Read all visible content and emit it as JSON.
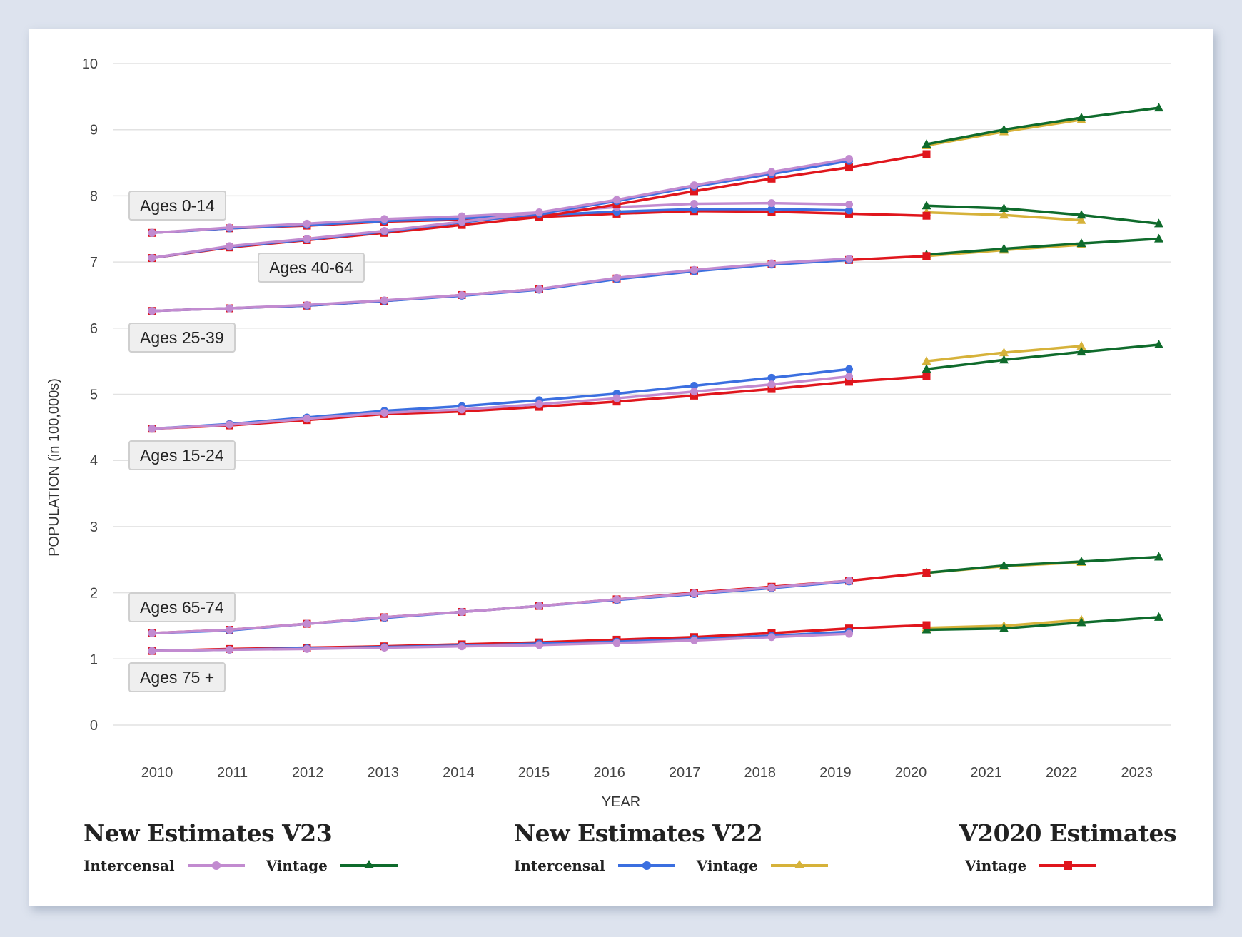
{
  "chart_data": {
    "type": "line",
    "title": "",
    "xlabel": "YEAR",
    "ylabel": "POPULATION (in 100,000s)",
    "ylim": [
      0,
      10
    ],
    "yticks": [
      "0",
      "1",
      "2",
      "3",
      "4",
      "5",
      "6",
      "7",
      "8",
      "9",
      "10"
    ],
    "xticks": [
      "2010",
      "2011",
      "2012",
      "2013",
      "2014",
      "2015",
      "2016",
      "2017",
      "2018",
      "2019",
      "2020",
      "2021",
      "2022",
      "2023"
    ],
    "grid": true,
    "series_styles": {
      "v23_intercensal": {
        "color": "#c28bd0",
        "marker": "circle",
        "legend": "New Estimates V23 — Intercensal"
      },
      "v23_vintage": {
        "color": "#0f6b2c",
        "marker": "triangle",
        "legend": "New Estimates V23 — Vintage"
      },
      "v22_intercensal": {
        "color": "#3b6fe0",
        "marker": "circle",
        "legend": "New Estimates V22 — Intercensal"
      },
      "v22_vintage": {
        "color": "#d6b23a",
        "marker": "triangle",
        "legend": "New Estimates V22 — Vintage"
      },
      "v2020_vintage": {
        "color": "#e0161d",
        "marker": "square",
        "legend": "V2020 Estimates — Vintage"
      }
    },
    "groups": [
      {
        "label": "Ages 0-14",
        "series": {
          "v2020_vintage": {
            "x": [
              2010,
              2011,
              2012,
              2013,
              2014,
              2015,
              2016,
              2017,
              2018,
              2019,
              2020
            ],
            "y": [
              7.44,
              7.51,
              7.55,
              7.61,
              7.64,
              7.68,
              7.73,
              7.77,
              7.76,
              7.73,
              7.7
            ]
          },
          "v22_intercensal": {
            "x": [
              2010,
              2011,
              2012,
              2013,
              2014,
              2015,
              2016,
              2017,
              2018,
              2019
            ],
            "y": [
              7.44,
              7.51,
              7.56,
              7.62,
              7.66,
              7.71,
              7.76,
              7.8,
              7.8,
              7.78
            ]
          },
          "v23_intercensal": {
            "x": [
              2010,
              2011,
              2012,
              2013,
              2014,
              2015,
              2016,
              2017,
              2018,
              2019
            ],
            "y": [
              7.44,
              7.52,
              7.58,
              7.65,
              7.69,
              7.75,
              7.83,
              7.88,
              7.89,
              7.87
            ]
          },
          "v22_vintage": {
            "x": [
              2020,
              2021,
              2022
            ],
            "y": [
              7.75,
              7.71,
              7.63
            ]
          },
          "v23_vintage": {
            "x": [
              2020,
              2021,
              2022,
              2023
            ],
            "y": [
              7.85,
              7.81,
              7.71,
              7.58
            ]
          }
        }
      },
      {
        "label": "Ages 40-64",
        "series": {
          "v2020_vintage": {
            "x": [
              2010,
              2011,
              2012,
              2013,
              2014,
              2015,
              2016,
              2017,
              2018,
              2019,
              2020
            ],
            "y": [
              7.06,
              7.22,
              7.33,
              7.44,
              7.56,
              7.68,
              7.87,
              8.07,
              8.26,
              8.43,
              8.63
            ]
          },
          "v22_intercensal": {
            "x": [
              2010,
              2011,
              2012,
              2013,
              2014,
              2015,
              2016,
              2017,
              2018,
              2019
            ],
            "y": [
              7.06,
              7.23,
              7.34,
              7.46,
              7.6,
              7.73,
              7.92,
              8.14,
              8.33,
              8.53
            ]
          },
          "v23_intercensal": {
            "x": [
              2010,
              2011,
              2012,
              2013,
              2014,
              2015,
              2016,
              2017,
              2018,
              2019
            ],
            "y": [
              7.06,
              7.24,
              7.35,
              7.47,
              7.61,
              7.75,
              7.94,
              8.16,
              8.36,
              8.56
            ]
          },
          "v22_vintage": {
            "x": [
              2020,
              2021,
              2022
            ],
            "y": [
              8.76,
              8.97,
              9.15
            ]
          },
          "v23_vintage": {
            "x": [
              2020,
              2021,
              2022,
              2023
            ],
            "y": [
              8.78,
              9.0,
              9.18,
              9.33
            ]
          }
        }
      },
      {
        "label": "Ages 25-39",
        "series": {
          "v2020_vintage": {
            "x": [
              2010,
              2011,
              2012,
              2013,
              2014,
              2015,
              2016,
              2017,
              2018,
              2019,
              2020
            ],
            "y": [
              6.26,
              6.3,
              6.34,
              6.41,
              6.5,
              6.59,
              6.75,
              6.87,
              6.97,
              7.03,
              7.09
            ]
          },
          "v22_intercensal": {
            "x": [
              2010,
              2011,
              2012,
              2013,
              2014,
              2015,
              2016,
              2017,
              2018,
              2019
            ],
            "y": [
              6.26,
              6.3,
              6.34,
              6.41,
              6.49,
              6.58,
              6.74,
              6.86,
              6.96,
              7.03
            ]
          },
          "v23_intercensal": {
            "x": [
              2010,
              2011,
              2012,
              2013,
              2014,
              2015,
              2016,
              2017,
              2018,
              2019
            ],
            "y": [
              6.26,
              6.3,
              6.35,
              6.42,
              6.5,
              6.59,
              6.76,
              6.88,
              6.98,
              7.05
            ]
          },
          "v22_vintage": {
            "x": [
              2020,
              2021,
              2022
            ],
            "y": [
              7.09,
              7.18,
              7.26
            ]
          },
          "v23_vintage": {
            "x": [
              2020,
              2021,
              2022,
              2023
            ],
            "y": [
              7.11,
              7.2,
              7.28,
              7.35
            ]
          }
        }
      },
      {
        "label": "Ages 15-24",
        "series": {
          "v2020_vintage": {
            "x": [
              2010,
              2011,
              2012,
              2013,
              2014,
              2015,
              2016,
              2017,
              2018,
              2019,
              2020
            ],
            "y": [
              4.48,
              4.53,
              4.61,
              4.7,
              4.74,
              4.81,
              4.89,
              4.98,
              5.08,
              5.19,
              5.27
            ]
          },
          "v22_intercensal": {
            "x": [
              2010,
              2011,
              2012,
              2013,
              2014,
              2015,
              2016,
              2017,
              2018,
              2019
            ],
            "y": [
              4.48,
              4.55,
              4.65,
              4.75,
              4.82,
              4.91,
              5.01,
              5.13,
              5.25,
              5.38
            ]
          },
          "v23_intercensal": {
            "x": [
              2010,
              2011,
              2012,
              2013,
              2014,
              2015,
              2016,
              2017,
              2018,
              2019
            ],
            "y": [
              4.48,
              4.54,
              4.63,
              4.72,
              4.77,
              4.85,
              4.94,
              5.04,
              5.15,
              5.27
            ]
          },
          "v22_vintage": {
            "x": [
              2020,
              2021,
              2022
            ],
            "y": [
              5.5,
              5.63,
              5.73
            ]
          },
          "v23_vintage": {
            "x": [
              2020,
              2021,
              2022,
              2023
            ],
            "y": [
              5.38,
              5.52,
              5.64,
              5.75
            ]
          }
        }
      },
      {
        "label": "Ages 65-74",
        "series": {
          "v2020_vintage": {
            "x": [
              2010,
              2011,
              2012,
              2013,
              2014,
              2015,
              2016,
              2017,
              2018,
              2019,
              2020
            ],
            "y": [
              1.39,
              1.44,
              1.53,
              1.63,
              1.71,
              1.8,
              1.9,
              2.0,
              2.09,
              2.18,
              2.3
            ]
          },
          "v22_intercensal": {
            "x": [
              2010,
              2011,
              2012,
              2013,
              2014,
              2015,
              2016,
              2017,
              2018,
              2019
            ],
            "y": [
              1.39,
              1.43,
              1.53,
              1.62,
              1.71,
              1.8,
              1.89,
              1.98,
              2.07,
              2.17
            ]
          },
          "v23_intercensal": {
            "x": [
              2010,
              2011,
              2012,
              2013,
              2014,
              2015,
              2016,
              2017,
              2018,
              2019
            ],
            "y": [
              1.39,
              1.44,
              1.53,
              1.63,
              1.71,
              1.8,
              1.9,
              1.99,
              2.08,
              2.18
            ]
          },
          "v22_vintage": {
            "x": [
              2020,
              2021,
              2022
            ],
            "y": [
              2.3,
              2.4,
              2.46
            ]
          },
          "v23_vintage": {
            "x": [
              2020,
              2021,
              2022,
              2023
            ],
            "y": [
              2.3,
              2.41,
              2.47,
              2.54
            ]
          }
        }
      },
      {
        "label": "Ages 75 +",
        "series": {
          "v2020_vintage": {
            "x": [
              2010,
              2011,
              2012,
              2013,
              2014,
              2015,
              2016,
              2017,
              2018,
              2019,
              2020
            ],
            "y": [
              1.12,
              1.15,
              1.17,
              1.19,
              1.22,
              1.25,
              1.29,
              1.33,
              1.39,
              1.46,
              1.51
            ]
          },
          "v22_intercensal": {
            "x": [
              2010,
              2011,
              2012,
              2013,
              2014,
              2015,
              2016,
              2017,
              2018,
              2019
            ],
            "y": [
              1.12,
              1.14,
              1.16,
              1.18,
              1.2,
              1.23,
              1.26,
              1.3,
              1.35,
              1.41
            ]
          },
          "v23_intercensal": {
            "x": [
              2010,
              2011,
              2012,
              2013,
              2014,
              2015,
              2016,
              2017,
              2018,
              2019
            ],
            "y": [
              1.12,
              1.14,
              1.15,
              1.17,
              1.19,
              1.21,
              1.24,
              1.28,
              1.33,
              1.38
            ]
          },
          "v22_vintage": {
            "x": [
              2020,
              2021,
              2022
            ],
            "y": [
              1.47,
              1.5,
              1.59
            ]
          },
          "v23_vintage": {
            "x": [
              2020,
              2021,
              2022,
              2023
            ],
            "y": [
              1.44,
              1.46,
              1.55,
              1.63
            ]
          }
        }
      }
    ]
  },
  "legend": {
    "v23": {
      "title": "New Estimates V23",
      "intercensal": "Intercensal",
      "vintage": "Vintage"
    },
    "v22": {
      "title": "New Estimates V22",
      "intercensal": "Intercensal",
      "vintage": "Vintage"
    },
    "v2020": {
      "title": "V2020 Estimates",
      "vintage": "Vintage"
    }
  }
}
